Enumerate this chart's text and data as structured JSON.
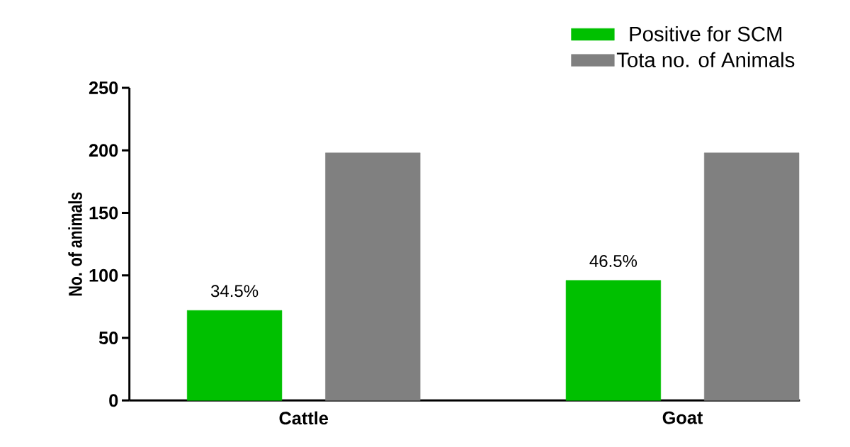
{
  "chart_data": {
    "type": "bar",
    "ylabel": "No. of animals",
    "categories": [
      "Cattle",
      "Goat"
    ],
    "series": [
      {
        "name": "Positive for SCM",
        "color": "#00c000",
        "values": [
          72,
          96
        ]
      },
      {
        "name": "Tota no. of Animals",
        "color": "#808080",
        "values": [
          198,
          198
        ]
      }
    ],
    "ylim": [
      0,
      250
    ],
    "yticks": [
      0,
      50,
      100,
      150,
      200,
      250
    ],
    "grid": false,
    "legend": "top right",
    "annotations": [
      "34.5%",
      "46.5%"
    ]
  }
}
